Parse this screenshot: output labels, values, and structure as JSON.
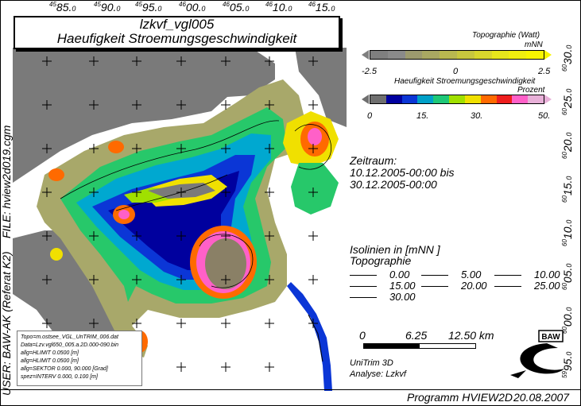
{
  "title": {
    "line1": "lzkvf_vgl005",
    "line2": "Haeufigkeit Stroemungsgeschwindigkeit"
  },
  "top_ticks": [
    {
      "deg": "45",
      "min": "85.",
      "sec": "0"
    },
    {
      "deg": "45",
      "min": "90.",
      "sec": "0"
    },
    {
      "deg": "45",
      "min": "95.",
      "sec": "0"
    },
    {
      "deg": "46",
      "min": "00.",
      "sec": "0"
    },
    {
      "deg": "46",
      "min": "05.",
      "sec": "0"
    },
    {
      "deg": "46",
      "min": "10.",
      "sec": "0"
    },
    {
      "deg": "46",
      "min": "15.",
      "sec": "0"
    }
  ],
  "right_ticks": [
    {
      "deg": "60",
      "min": "30.",
      "sec": "0"
    },
    {
      "deg": "60",
      "min": "25.",
      "sec": "0"
    },
    {
      "deg": "60",
      "min": "20.",
      "sec": "0"
    },
    {
      "deg": "60",
      "min": "15.",
      "sec": "0"
    },
    {
      "deg": "60",
      "min": "10.",
      "sec": "0"
    },
    {
      "deg": "60",
      "min": "05.",
      "sec": "0"
    },
    {
      "deg": "60",
      "min": "00.",
      "sec": "0"
    },
    {
      "deg": "59",
      "min": "95.",
      "sec": "0"
    }
  ],
  "side_labels": {
    "file": "FILE: hview2d019.cgm",
    "user": "USER: BAW-AK (Referat K2)"
  },
  "legend_topo": {
    "title": "Topographie (Watt)",
    "unit": "mNN",
    "ticks": [
      "-2.5",
      "0",
      "2.5"
    ],
    "colors": [
      "#7f7f7f",
      "#8a8a8a",
      "#9c9a6e",
      "#a9a862",
      "#b9b850",
      "#c8c73e",
      "#d8d62d",
      "#e6e61c",
      "#f0ee10",
      "#f8f500"
    ]
  },
  "legend_freq": {
    "title": "Haeufigkeit Stroemungsgeschwindigkeit",
    "unit": "Prozent",
    "ticks": [
      "0",
      "15.",
      "30.",
      "50."
    ],
    "colors": [
      "#6f6f6f",
      "#0000a0",
      "#0b36d6",
      "#00a0c8",
      "#1ec878",
      "#a0e000",
      "#f0e000",
      "#ff6a00",
      "#ee1e1e",
      "#ff60c8",
      "#e8b0d8"
    ]
  },
  "period": {
    "label": "Zeitraum:",
    "from": "10.12.2005-00:00 bis",
    "to": "30.12.2005-00:00"
  },
  "isolines": {
    "title": "Isolinien in [mNN      ]",
    "subtitle": "Topographie",
    "values": [
      "0.00",
      "5.00",
      "10.00",
      "15.00",
      "20.00",
      "25.00",
      "30.00"
    ]
  },
  "scalebar": {
    "labels": [
      "0",
      "6.25",
      "12.50 km"
    ]
  },
  "model": {
    "name": "UniTrim 3D",
    "analysis": "Analyse: Lzkvf"
  },
  "logo": {
    "text": "BAW"
  },
  "footer": {
    "program": "Programm HVIEW2D",
    "date": "20.08.2007"
  },
  "infobox": [
    "Topo=m.ostsee_VGL_UnTRIM_006.dat",
    "Data=Lzv.vgl650_005.a.2D.000-090.bin",
    "allg=HLIMIT   0.0500 [m]",
    "allg=HLIMIT   0.0500 [m]",
    "allg=SEKTOR   0.000,  90.000 [Grad]",
    "spez=INTERV   0.000,   0.100 [m]"
  ]
}
